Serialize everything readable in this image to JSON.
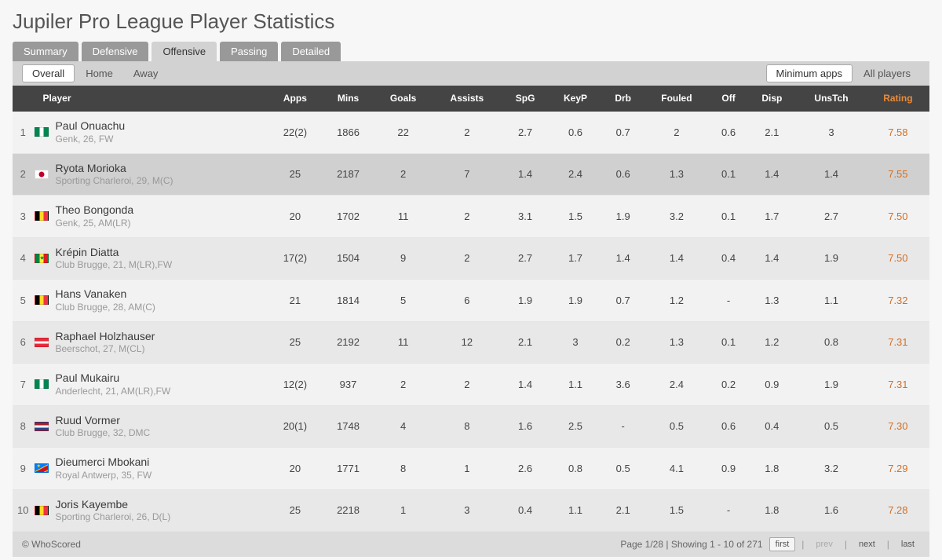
{
  "title": "Jupiler Pro League Player Statistics",
  "main_tabs": {
    "items": [
      "Summary",
      "Defensive",
      "Offensive",
      "Passing",
      "Detailed"
    ],
    "active_index": 2
  },
  "scope_filter": {
    "items": [
      "Overall",
      "Home",
      "Away"
    ],
    "active_index": 0
  },
  "apps_filter": {
    "items": [
      "Minimum apps",
      "All players"
    ],
    "active_index": 0
  },
  "columns": [
    "Player",
    "Apps",
    "Mins",
    "Goals",
    "Assists",
    "SpG",
    "KeyP",
    "Drb",
    "Fouled",
    "Off",
    "Disp",
    "UnsTch",
    "Rating"
  ],
  "rows": [
    {
      "rank": "1",
      "flag": "ng",
      "name": "Paul Onuachu",
      "meta": "Genk,  26, FW",
      "apps": "22(2)",
      "mins": "1866",
      "goals": "22",
      "assists": "2",
      "spg": "2.7",
      "keyp": "0.6",
      "drb": "0.7",
      "fouled": "2",
      "off": "0.6",
      "disp": "2.1",
      "unstch": "3",
      "rating": "7.58",
      "selected": false
    },
    {
      "rank": "2",
      "flag": "jp",
      "name": "Ryota Morioka",
      "meta": "Sporting Charleroi,  29, M(C)",
      "apps": "25",
      "mins": "2187",
      "goals": "2",
      "assists": "7",
      "spg": "1.4",
      "keyp": "2.4",
      "drb": "0.6",
      "fouled": "1.3",
      "off": "0.1",
      "disp": "1.4",
      "unstch": "1.4",
      "rating": "7.55",
      "selected": true
    },
    {
      "rank": "3",
      "flag": "be",
      "name": "Theo Bongonda",
      "meta": "Genk,  25, AM(LR)",
      "apps": "20",
      "mins": "1702",
      "goals": "11",
      "assists": "2",
      "spg": "3.1",
      "keyp": "1.5",
      "drb": "1.9",
      "fouled": "3.2",
      "off": "0.1",
      "disp": "1.7",
      "unstch": "2.7",
      "rating": "7.50",
      "selected": false
    },
    {
      "rank": "4",
      "flag": "sn",
      "name": "Krépin Diatta",
      "meta": "Club Brugge,  21, M(LR),FW",
      "apps": "17(2)",
      "mins": "1504",
      "goals": "9",
      "assists": "2",
      "spg": "2.7",
      "keyp": "1.7",
      "drb": "1.4",
      "fouled": "1.4",
      "off": "0.4",
      "disp": "1.4",
      "unstch": "1.9",
      "rating": "7.50",
      "selected": false
    },
    {
      "rank": "5",
      "flag": "be",
      "name": "Hans Vanaken",
      "meta": "Club Brugge,  28, AM(C)",
      "apps": "21",
      "mins": "1814",
      "goals": "5",
      "assists": "6",
      "spg": "1.9",
      "keyp": "1.9",
      "drb": "0.7",
      "fouled": "1.2",
      "off": "-",
      "disp": "1.3",
      "unstch": "1.1",
      "rating": "7.32",
      "selected": false
    },
    {
      "rank": "6",
      "flag": "at",
      "name": "Raphael Holzhauser",
      "meta": "Beerschot,  27, M(CL)",
      "apps": "25",
      "mins": "2192",
      "goals": "11",
      "assists": "12",
      "spg": "2.1",
      "keyp": "3",
      "drb": "0.2",
      "fouled": "1.3",
      "off": "0.1",
      "disp": "1.2",
      "unstch": "0.8",
      "rating": "7.31",
      "selected": false
    },
    {
      "rank": "7",
      "flag": "ng",
      "name": "Paul Mukairu",
      "meta": "Anderlecht,  21, AM(LR),FW",
      "apps": "12(2)",
      "mins": "937",
      "goals": "2",
      "assists": "2",
      "spg": "1.4",
      "keyp": "1.1",
      "drb": "3.6",
      "fouled": "2.4",
      "off": "0.2",
      "disp": "0.9",
      "unstch": "1.9",
      "rating": "7.31",
      "selected": false
    },
    {
      "rank": "8",
      "flag": "nl",
      "name": "Ruud Vormer",
      "meta": "Club Brugge,  32, DMC",
      "apps": "20(1)",
      "mins": "1748",
      "goals": "4",
      "assists": "8",
      "spg": "1.6",
      "keyp": "2.5",
      "drb": "-",
      "fouled": "0.5",
      "off": "0.6",
      "disp": "0.4",
      "unstch": "0.5",
      "rating": "7.30",
      "selected": false
    },
    {
      "rank": "9",
      "flag": "cd",
      "name": "Dieumerci Mbokani",
      "meta": "Royal Antwerp,  35, FW",
      "apps": "20",
      "mins": "1771",
      "goals": "8",
      "assists": "1",
      "spg": "2.6",
      "keyp": "0.8",
      "drb": "0.5",
      "fouled": "4.1",
      "off": "0.9",
      "disp": "1.8",
      "unstch": "3.2",
      "rating": "7.29",
      "selected": false
    },
    {
      "rank": "10",
      "flag": "be",
      "name": "Joris Kayembe",
      "meta": "Sporting Charleroi,  26, D(L)",
      "apps": "25",
      "mins": "2218",
      "goals": "1",
      "assists": "3",
      "spg": "0.4",
      "keyp": "1.1",
      "drb": "2.1",
      "fouled": "1.5",
      "off": "-",
      "disp": "1.8",
      "unstch": "1.6",
      "rating": "7.28",
      "selected": false
    }
  ],
  "footer": {
    "credit": "© WhoScored",
    "page_info": "Page 1/28 | Showing 1 - 10 of 271",
    "pager": {
      "first": "first",
      "prev": "prev",
      "next": "next",
      "last": "last"
    }
  }
}
